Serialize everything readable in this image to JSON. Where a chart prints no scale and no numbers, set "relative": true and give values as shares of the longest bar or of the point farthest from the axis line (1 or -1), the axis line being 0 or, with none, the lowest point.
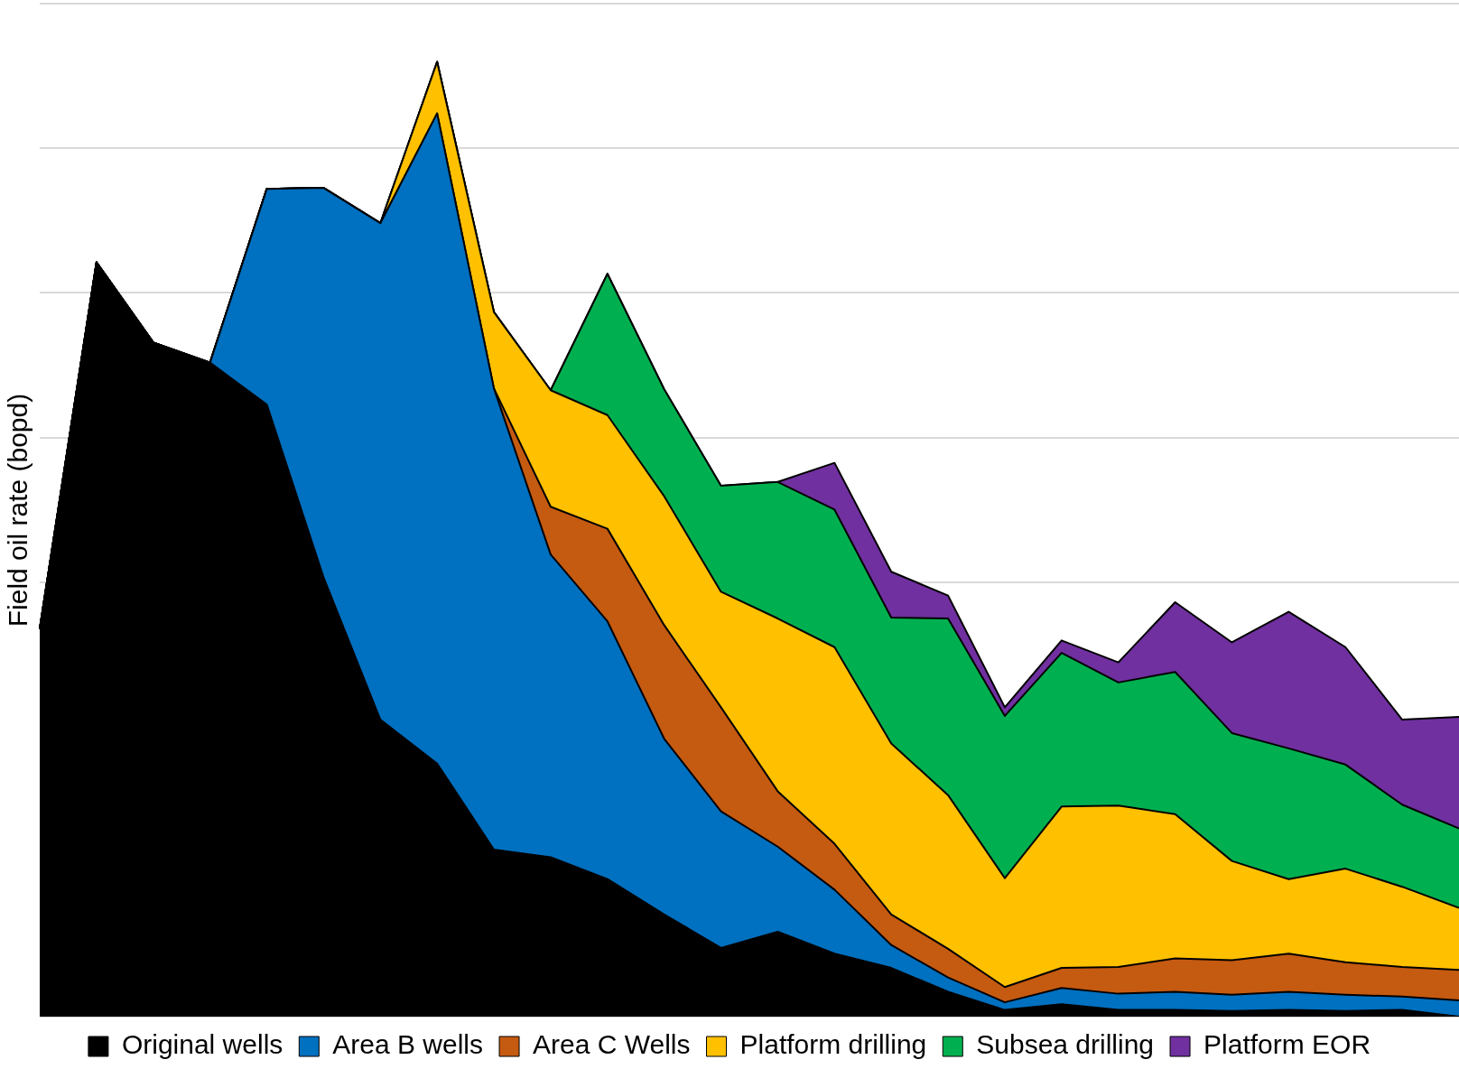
{
  "chart_data": {
    "type": "area",
    "stacked": true,
    "relative": true,
    "ylabel": "Field oil rate (bopd)",
    "grid": "y",
    "legend": "bottom",
    "categories": [
      null,
      null,
      null,
      null,
      null,
      null,
      null,
      null,
      null,
      null,
      null,
      null,
      null,
      null,
      null,
      null,
      null,
      null,
      null,
      null,
      null,
      null,
      null,
      null,
      null,
      null
    ],
    "series": [
      {
        "name": "Original wells",
        "color": "#000000",
        "values": [
          0.406,
          0.79,
          0.706,
          0.685,
          0.641,
          0.46,
          0.311,
          0.265,
          0.175,
          0.167,
          0.144,
          0.107,
          0.072,
          0.089,
          0.066,
          0.051,
          0.026,
          0.007,
          0.013,
          0.007,
          0.007,
          0.006,
          0.007,
          0.006,
          0.007,
          0
        ]
      },
      {
        "name": "Area B wells",
        "color": "#0070c0",
        "values": [
          0,
          0,
          0,
          0,
          0.226,
          0.408,
          0.52,
          0.681,
          0.483,
          0.317,
          0.27,
          0.184,
          0.143,
          0.089,
          0.067,
          0.024,
          0.015,
          0.008,
          0.017,
          0.017,
          0.019,
          0.017,
          0.019,
          0.017,
          0.014,
          0.017
        ]
      },
      {
        "name": "Area C Wells",
        "color": "#c55a11",
        "values": [
          0,
          0,
          0,
          0,
          0,
          0,
          0,
          0,
          0,
          0.05,
          0.097,
          0.119,
          0.109,
          0.058,
          0.048,
          0.032,
          0.03,
          0.016,
          0.021,
          0.028,
          0.035,
          0.036,
          0.04,
          0.034,
          0.031,
          0.032
        ]
      },
      {
        "name": "Platform drilling",
        "color": "#ffc000",
        "values": [
          0,
          0,
          0,
          0,
          0,
          0,
          0,
          0.054,
          0.08,
          0.122,
          0.119,
          0.135,
          0.121,
          0.181,
          0.206,
          0.179,
          0.161,
          0.114,
          0.169,
          0.169,
          0.151,
          0.104,
          0.078,
          0.098,
          0.084,
          0.065
        ]
      },
      {
        "name": "Subsea drilling",
        "color": "#00b050",
        "values": [
          0,
          0,
          0,
          0,
          0,
          0,
          0,
          0,
          0,
          0,
          0.148,
          0.112,
          0.111,
          0.143,
          0.144,
          0.132,
          0.185,
          0.17,
          0.161,
          0.129,
          0.149,
          0.134,
          0.137,
          0.109,
          0.086,
          0.083
        ]
      },
      {
        "name": "Platform EOR",
        "color": "#7030a0",
        "values": [
          0,
          0,
          0,
          0,
          0,
          0,
          0,
          0,
          0,
          0,
          0,
          0,
          0,
          0,
          0.049,
          0.048,
          0.024,
          0.009,
          0.013,
          0.021,
          0.073,
          0.095,
          0.143,
          0.123,
          0.089,
          0.117
        ]
      }
    ]
  }
}
